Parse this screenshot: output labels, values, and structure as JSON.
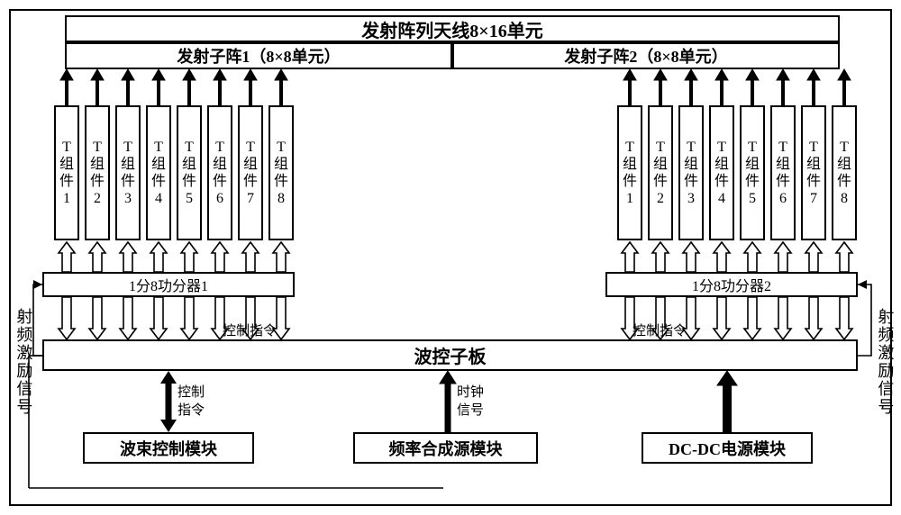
{
  "antenna": {
    "main": "发射阵列天线8×16单元"
  },
  "subarray1": "发射子阵1（8×8单元）",
  "subarray2": "发射子阵2（8×8单元）",
  "tCompPrefix": "T",
  "tCompMid1": "组",
  "tCompMid2": "件",
  "tGroupsLeft": [
    "1",
    "2",
    "3",
    "4",
    "5",
    "6",
    "7",
    "8"
  ],
  "tGroupsRight": [
    "1",
    "2",
    "3",
    "4",
    "5",
    "6",
    "7",
    "8"
  ],
  "divider1": "1分8功分器1",
  "divider2": "1分8功分器2",
  "waveboard": "波控子板",
  "beamCtrl": "波束控制模块",
  "freqSynth": "频率合成源模块",
  "dcdc": "DC-DC电源模块",
  "labels": {
    "ctrlCmdLeft": "控制指令",
    "ctrlCmdRight": "控制指令",
    "ctrlCmdVert1": "控制",
    "ctrlCmdVert2": "指令",
    "clock1": "时钟",
    "clock2": "信号",
    "rfLeft": "射频激励信号",
    "rfRight": "射频激励信号"
  },
  "geom": {
    "leftStart": 48,
    "rightStart": 673,
    "pitch": 34,
    "tTop": 105,
    "tBot": 255,
    "subBot": 65,
    "divTop": 290,
    "divBot": 318,
    "wbTop": 365,
    "wbBot": 400,
    "modTop": 468,
    "leftRFx": 20,
    "rightRFx": 960
  },
  "style": {
    "stroke": "#000000",
    "filled_head": "#000000",
    "hollow_fill": "#ffffff",
    "thin_line": 1.5,
    "thick_line": 3
  }
}
